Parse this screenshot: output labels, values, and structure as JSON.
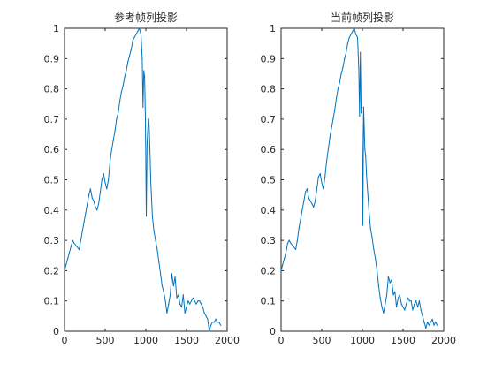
{
  "chart_data": [
    {
      "type": "line",
      "title": "参考帧列投影",
      "xlabel": "",
      "ylabel": "",
      "xlim": [
        0,
        2000
      ],
      "ylim": [
        0,
        1
      ],
      "xticks": [
        "0",
        "500",
        "1000",
        "1500",
        "2000"
      ],
      "yticks": [
        "0",
        "0.1",
        "0.2",
        "0.3",
        "0.4",
        "0.5",
        "0.6",
        "0.7",
        "0.8",
        "0.9",
        "1"
      ],
      "grid": false,
      "color": "#0072BD",
      "series": [
        {
          "x": [
            0,
            20,
            40,
            60,
            80,
            100,
            120,
            150,
            180,
            200,
            220,
            240,
            260,
            280,
            300,
            320,
            340,
            360,
            380,
            400,
            420,
            440,
            460,
            480,
            500,
            520,
            540,
            560,
            580,
            600,
            620,
            640,
            660,
            680,
            700,
            720,
            740,
            760,
            780,
            800,
            820,
            840,
            860,
            880,
            900,
            920,
            940,
            955,
            965,
            975,
            985,
            995,
            1005,
            1015,
            1030,
            1040,
            1050,
            1060,
            1080,
            1100,
            1120,
            1140,
            1160,
            1180,
            1200,
            1220,
            1240,
            1260,
            1280,
            1300,
            1320,
            1340,
            1360,
            1380,
            1400,
            1420,
            1440,
            1460,
            1480,
            1500,
            1520,
            1540,
            1560,
            1580,
            1600,
            1620,
            1640,
            1660,
            1680,
            1700,
            1720,
            1740,
            1760,
            1780,
            1800,
            1820,
            1840,
            1860,
            1880,
            1900,
            1920
          ],
          "y": [
            0.2,
            0.22,
            0.24,
            0.26,
            0.28,
            0.3,
            0.29,
            0.28,
            0.27,
            0.3,
            0.33,
            0.36,
            0.39,
            0.42,
            0.45,
            0.47,
            0.44,
            0.43,
            0.41,
            0.4,
            0.42,
            0.46,
            0.5,
            0.52,
            0.49,
            0.47,
            0.5,
            0.56,
            0.6,
            0.63,
            0.66,
            0.7,
            0.72,
            0.76,
            0.79,
            0.81,
            0.84,
            0.86,
            0.89,
            0.91,
            0.93,
            0.96,
            0.97,
            0.98,
            0.99,
            1.0,
            0.98,
            0.9,
            0.74,
            0.86,
            0.84,
            0.7,
            0.38,
            0.62,
            0.7,
            0.68,
            0.6,
            0.5,
            0.38,
            0.33,
            0.3,
            0.27,
            0.23,
            0.19,
            0.15,
            0.13,
            0.1,
            0.06,
            0.09,
            0.12,
            0.19,
            0.15,
            0.18,
            0.11,
            0.12,
            0.09,
            0.08,
            0.12,
            0.06,
            0.08,
            0.1,
            0.09,
            0.1,
            0.11,
            0.1,
            0.09,
            0.1,
            0.1,
            0.09,
            0.08,
            0.06,
            0.05,
            0.04,
            0.0,
            0.02,
            0.03,
            0.03,
            0.04,
            0.03,
            0.03,
            0.02
          ]
        }
      ]
    },
    {
      "type": "line",
      "title": "当前帧列投影",
      "xlabel": "",
      "ylabel": "",
      "xlim": [
        0,
        2000
      ],
      "ylim": [
        0,
        1
      ],
      "xticks": [
        "0",
        "500",
        "1000",
        "1500",
        "2000"
      ],
      "yticks": [
        "0",
        "0.1",
        "0.2",
        "0.3",
        "0.4",
        "0.5",
        "0.6",
        "0.7",
        "0.8",
        "0.9",
        "1"
      ],
      "grid": false,
      "color": "#0072BD",
      "series": [
        {
          "x": [
            0,
            20,
            40,
            60,
            80,
            100,
            120,
            150,
            180,
            200,
            220,
            240,
            260,
            280,
            300,
            320,
            340,
            360,
            380,
            400,
            420,
            440,
            460,
            480,
            500,
            520,
            540,
            560,
            580,
            600,
            620,
            640,
            660,
            680,
            700,
            720,
            740,
            760,
            780,
            800,
            820,
            840,
            860,
            880,
            900,
            920,
            940,
            955,
            965,
            975,
            985,
            995,
            1005,
            1015,
            1030,
            1040,
            1050,
            1060,
            1080,
            1100,
            1120,
            1140,
            1160,
            1180,
            1200,
            1220,
            1240,
            1260,
            1280,
            1300,
            1320,
            1340,
            1360,
            1380,
            1400,
            1420,
            1440,
            1460,
            1480,
            1500,
            1520,
            1540,
            1560,
            1580,
            1600,
            1620,
            1640,
            1660,
            1680,
            1700,
            1720,
            1740,
            1760,
            1780,
            1800,
            1820,
            1840,
            1860,
            1880,
            1900,
            1920
          ],
          "y": [
            0.2,
            0.22,
            0.24,
            0.26,
            0.29,
            0.3,
            0.29,
            0.28,
            0.27,
            0.3,
            0.34,
            0.37,
            0.4,
            0.43,
            0.46,
            0.47,
            0.44,
            0.43,
            0.42,
            0.41,
            0.43,
            0.47,
            0.51,
            0.52,
            0.49,
            0.47,
            0.51,
            0.56,
            0.6,
            0.64,
            0.67,
            0.7,
            0.73,
            0.77,
            0.8,
            0.82,
            0.85,
            0.87,
            0.9,
            0.92,
            0.95,
            0.97,
            0.98,
            0.99,
            1.0,
            0.98,
            0.97,
            0.87,
            0.71,
            0.92,
            0.72,
            0.74,
            0.35,
            0.74,
            0.6,
            0.58,
            0.52,
            0.48,
            0.4,
            0.34,
            0.31,
            0.27,
            0.24,
            0.2,
            0.15,
            0.11,
            0.08,
            0.06,
            0.09,
            0.12,
            0.18,
            0.16,
            0.17,
            0.12,
            0.13,
            0.08,
            0.11,
            0.12,
            0.09,
            0.08,
            0.07,
            0.09,
            0.11,
            0.1,
            0.1,
            0.07,
            0.09,
            0.1,
            0.08,
            0.1,
            0.07,
            0.05,
            0.03,
            0.01,
            0.03,
            0.02,
            0.03,
            0.04,
            0.02,
            0.03,
            0.02
          ]
        }
      ]
    }
  ]
}
